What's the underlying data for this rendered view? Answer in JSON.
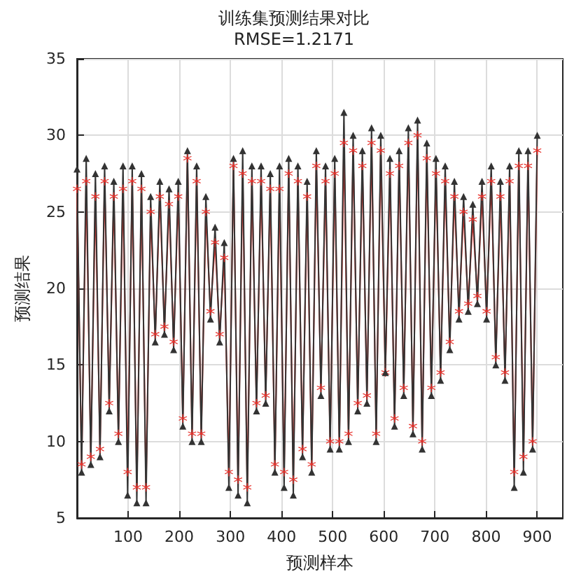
{
  "chart_data": {
    "type": "line",
    "title": "训练集预测结果对比",
    "subtitle": "RMSE=1.2171",
    "xlabel": "预测样本",
    "ylabel": "预测结果",
    "x": [
      0,
      9,
      18,
      27,
      36,
      45,
      54,
      63,
      72,
      81,
      90,
      99,
      108,
      117,
      126,
      135,
      144,
      153,
      162,
      171,
      180,
      189,
      198,
      207,
      216,
      225,
      234,
      243,
      252,
      261,
      270,
      279,
      288,
      297,
      306,
      315,
      324,
      333,
      342,
      351,
      360,
      369,
      378,
      387,
      396,
      405,
      414,
      423,
      432,
      441,
      450,
      459,
      468,
      477,
      486,
      495,
      504,
      513,
      522,
      531,
      540,
      549,
      558,
      567,
      576,
      585,
      594,
      603,
      612,
      621,
      630,
      639,
      648,
      657,
      666,
      675,
      684,
      693,
      702,
      711,
      720,
      729,
      738,
      747,
      756,
      765,
      774,
      783,
      792,
      801,
      810,
      819,
      828,
      837,
      846,
      855,
      864,
      873,
      882,
      891,
      900
    ],
    "xlim": [
      0,
      950
    ],
    "xticks": [
      100,
      200,
      300,
      400,
      500,
      600,
      700,
      800,
      900
    ],
    "ylim": [
      5,
      35
    ],
    "yticks": [
      5,
      10,
      15,
      20,
      25,
      30,
      35
    ],
    "grid": true,
    "line_style": "solid",
    "series": [
      {
        "color": "#e8302a",
        "marker": "star",
        "values": [
          26.5,
          8.5,
          27,
          9,
          26,
          9.5,
          27,
          12.5,
          26,
          10.5,
          26.5,
          8,
          27,
          7,
          26.5,
          7,
          25,
          17,
          26,
          17.5,
          25.5,
          16.5,
          26,
          11.5,
          28.5,
          10.5,
          27,
          10.5,
          25,
          18.5,
          23,
          17,
          22,
          8,
          28,
          7.5,
          27.5,
          7,
          27,
          12.5,
          27,
          13,
          26.5,
          8.5,
          26.5,
          8,
          27.5,
          7.5,
          27,
          9.5,
          26,
          8.5,
          28,
          13.5,
          27,
          10,
          27.5,
          10,
          29.5,
          10.5,
          29,
          12.5,
          28,
          13,
          29.5,
          10.5,
          29,
          14.5,
          27.5,
          11.5,
          28,
          13.5,
          29.5,
          11,
          30,
          10,
          28.5,
          13.5,
          27.5,
          14.5,
          27,
          16.5,
          26,
          18.5,
          25,
          19,
          24.5,
          19.5,
          26,
          18.5,
          27,
          15.5,
          26,
          14.5,
          27,
          8,
          28,
          9,
          28,
          10,
          29
        ]
      },
      {
        "color": "#333333",
        "marker": "triangle",
        "values": [
          27.8,
          8,
          28.5,
          8.5,
          27.5,
          9,
          28,
          12,
          27,
          10,
          28,
          6.5,
          28,
          6,
          27.5,
          6,
          26,
          16.5,
          27,
          17,
          26.5,
          16,
          27,
          11,
          29,
          10,
          28,
          10,
          26,
          18,
          24,
          16.5,
          23,
          7,
          28.5,
          6.5,
          29,
          6,
          28,
          12,
          28,
          12.5,
          27.5,
          8,
          28,
          7,
          28.5,
          6.5,
          28,
          9,
          27,
          8,
          29,
          13,
          28,
          9.5,
          28.5,
          9.5,
          31.5,
          10,
          30,
          12,
          29,
          12.5,
          30.5,
          10,
          30,
          14.5,
          28.5,
          11,
          29,
          13,
          30.5,
          10.5,
          31,
          9.5,
          29.5,
          13,
          28.5,
          14,
          28,
          16,
          27,
          18,
          26,
          18.5,
          25.5,
          19,
          27,
          18,
          28,
          15,
          27,
          14,
          28,
          7,
          29,
          8,
          29,
          9.5,
          30
        ]
      }
    ]
  }
}
